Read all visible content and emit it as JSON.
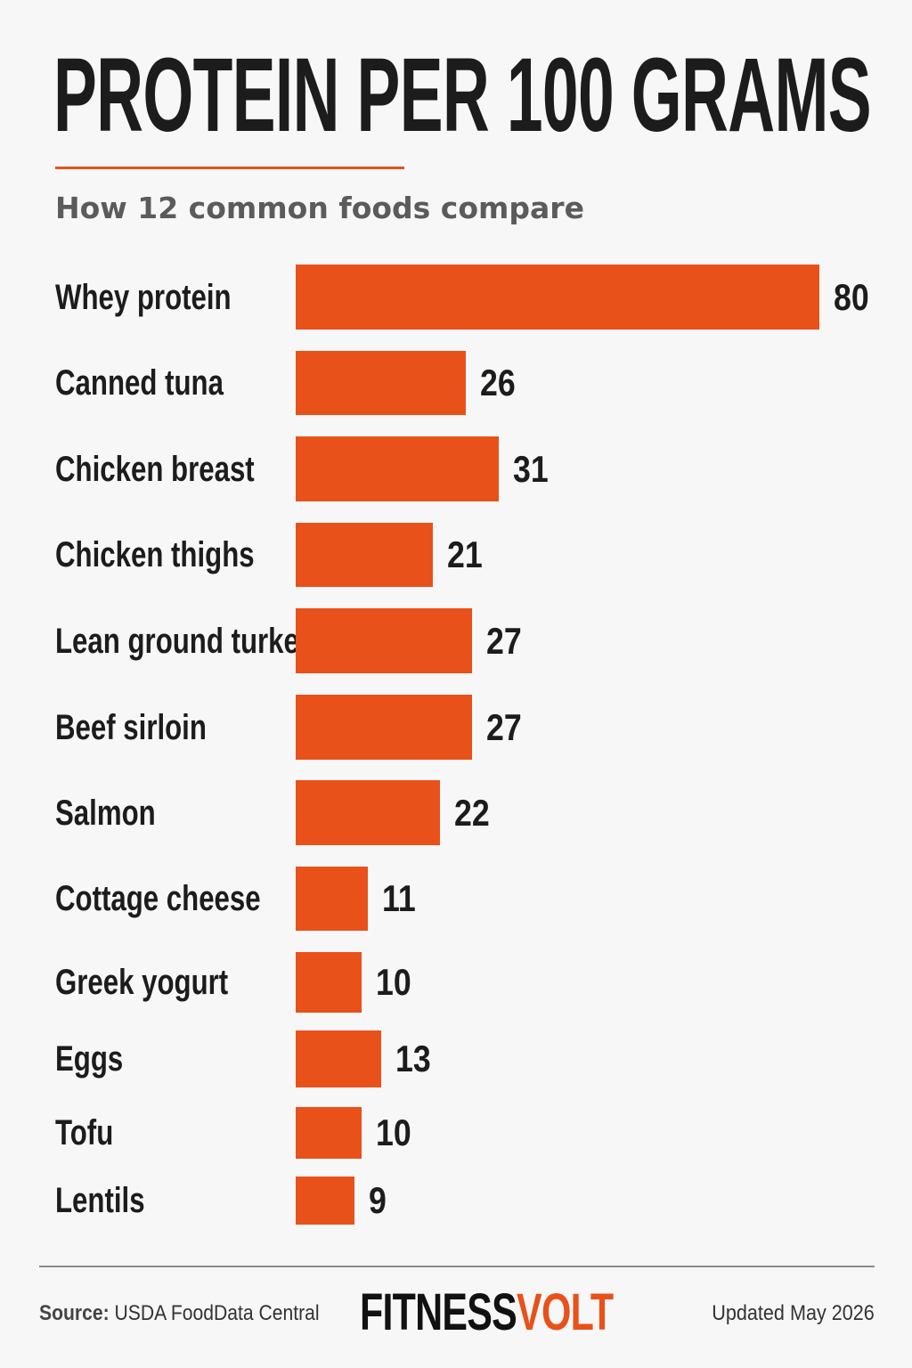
{
  "header": {
    "title": "PROTEIN PER 100 GRAMS",
    "subtitle": "How 12 common foods compare"
  },
  "colors": {
    "accent": "#e8511a",
    "text": "#1c1c1c",
    "subtitle": "#5b5b5b",
    "background": "#f7f7f7"
  },
  "chart_data": {
    "type": "bar",
    "orientation": "horizontal",
    "categories": [
      "Whey protein",
      "Canned tuna",
      "Chicken breast",
      "Chicken thighs",
      "Lean ground turkey",
      "Beef sirloin",
      "Salmon",
      "Cottage cheese",
      "Greek yogurt",
      "Eggs",
      "Tofu",
      "Lentils"
    ],
    "values": [
      80,
      26,
      31,
      21,
      27,
      27,
      22,
      11,
      10,
      13,
      10,
      9
    ],
    "title": "PROTEIN PER 100 GRAMS",
    "subtitle": "How 12 common foods compare",
    "xlabel": "",
    "ylabel": "",
    "xlim": [
      0,
      80
    ],
    "grid": false,
    "data_labels": true
  },
  "footer": {
    "source_prefix": "Source:",
    "source_text": "USDA FoodData Central",
    "brand_main": "FITNESS",
    "brand_accent": "VOLT",
    "updated": "Updated May 2026"
  }
}
